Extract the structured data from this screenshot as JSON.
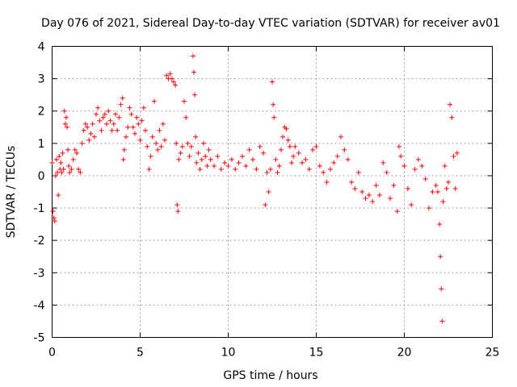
{
  "chart_data": {
    "type": "scatter",
    "title": "Day 076 of 2021, Sidereal Day-to-day VTEC variation (SDTVAR) for receiver av01",
    "xlabel": "GPS time / hours",
    "ylabel": "SDTVAR / TECUs",
    "xlim": [
      0,
      25
    ],
    "ylim": [
      -5,
      4
    ],
    "xticks": [
      0,
      5,
      10,
      15,
      20,
      25
    ],
    "yticks": [
      -5,
      -4,
      -3,
      -2,
      -1,
      0,
      1,
      2,
      3,
      4
    ],
    "grid": true,
    "marker": "+",
    "series": [
      {
        "name": "SDTVAR",
        "color": "#ff0000",
        "points": [
          [
            0.0,
            0.4
          ],
          [
            0.05,
            -1.1
          ],
          [
            0.1,
            -1.3
          ],
          [
            0.15,
            -1.4
          ],
          [
            0.2,
            0.0
          ],
          [
            0.25,
            0.5
          ],
          [
            0.3,
            0.1
          ],
          [
            0.35,
            -0.6
          ],
          [
            0.4,
            0.6
          ],
          [
            0.45,
            0.2
          ],
          [
            0.5,
            0.4
          ],
          [
            0.55,
            0.1
          ],
          [
            0.6,
            0.7
          ],
          [
            0.65,
            0.2
          ],
          [
            0.7,
            2.0
          ],
          [
            0.75,
            1.6
          ],
          [
            0.8,
            1.8
          ],
          [
            0.85,
            1.5
          ],
          [
            0.9,
            0.8
          ],
          [
            0.95,
            0.3
          ],
          [
            1.0,
            0.1
          ],
          [
            1.1,
            0.2
          ],
          [
            1.2,
            0.5
          ],
          [
            1.3,
            0.8
          ],
          [
            1.4,
            0.7
          ],
          [
            1.5,
            0.2
          ],
          [
            1.6,
            0.1
          ],
          [
            1.7,
            1.0
          ],
          [
            1.8,
            1.4
          ],
          [
            1.9,
            1.6
          ],
          [
            2.0,
            1.5
          ],
          [
            2.1,
            1.1
          ],
          [
            2.2,
            1.3
          ],
          [
            2.3,
            1.6
          ],
          [
            2.4,
            1.2
          ],
          [
            2.5,
            1.9
          ],
          [
            2.6,
            2.1
          ],
          [
            2.7,
            1.7
          ],
          [
            2.8,
            1.4
          ],
          [
            2.9,
            1.8
          ],
          [
            3.0,
            1.9
          ],
          [
            3.1,
            1.6
          ],
          [
            3.2,
            2.0
          ],
          [
            3.3,
            1.7
          ],
          [
            3.4,
            1.4
          ],
          [
            3.5,
            1.6
          ],
          [
            3.6,
            1.9
          ],
          [
            3.7,
            1.4
          ],
          [
            3.8,
            1.8
          ],
          [
            3.9,
            2.2
          ],
          [
            4.0,
            2.4
          ],
          [
            4.05,
            0.5
          ],
          [
            4.1,
            0.8
          ],
          [
            4.2,
            1.2
          ],
          [
            4.3,
            1.5
          ],
          [
            4.4,
            2.1
          ],
          [
            4.5,
            1.9
          ],
          [
            4.6,
            1.5
          ],
          [
            4.7,
            1.3
          ],
          [
            4.8,
            1.8
          ],
          [
            4.9,
            1.6
          ],
          [
            5.0,
            1.1
          ],
          [
            5.1,
            1.7
          ],
          [
            5.2,
            2.1
          ],
          [
            5.3,
            1.4
          ],
          [
            5.4,
            0.9
          ],
          [
            5.5,
            0.2
          ],
          [
            5.6,
            0.6
          ],
          [
            5.7,
            1.2
          ],
          [
            5.8,
            2.3
          ],
          [
            5.9,
            1.0
          ],
          [
            6.0,
            0.8
          ],
          [
            6.1,
            1.4
          ],
          [
            6.2,
            0.9
          ],
          [
            6.3,
            1.6
          ],
          [
            6.4,
            1.1
          ],
          [
            6.5,
            3.1
          ],
          [
            6.6,
            3.0
          ],
          [
            6.7,
            3.15
          ],
          [
            6.8,
            3.0
          ],
          [
            6.9,
            2.9
          ],
          [
            7.0,
            2.8
          ],
          [
            7.05,
            1.0
          ],
          [
            7.1,
            -0.9
          ],
          [
            7.15,
            -1.1
          ],
          [
            7.2,
            0.5
          ],
          [
            7.3,
            0.7
          ],
          [
            7.4,
            0.9
          ],
          [
            7.5,
            2.3
          ],
          [
            7.6,
            1.8
          ],
          [
            7.7,
            1.0
          ],
          [
            7.8,
            0.6
          ],
          [
            7.9,
            0.9
          ],
          [
            8.0,
            3.7
          ],
          [
            8.05,
            3.2
          ],
          [
            8.1,
            2.5
          ],
          [
            8.15,
            1.2
          ],
          [
            8.2,
            0.4
          ],
          [
            8.3,
            0.7
          ],
          [
            8.4,
            0.2
          ],
          [
            8.5,
            0.5
          ],
          [
            8.6,
            1.0
          ],
          [
            8.7,
            0.6
          ],
          [
            8.8,
            0.3
          ],
          [
            8.9,
            0.8
          ],
          [
            9.0,
            0.5
          ],
          [
            9.2,
            0.3
          ],
          [
            9.4,
            0.6
          ],
          [
            9.6,
            0.2
          ],
          [
            9.8,
            0.4
          ],
          [
            10.0,
            0.3
          ],
          [
            10.2,
            0.5
          ],
          [
            10.4,
            0.2
          ],
          [
            10.6,
            0.4
          ],
          [
            10.8,
            0.6
          ],
          [
            11.0,
            0.3
          ],
          [
            11.2,
            0.8
          ],
          [
            11.4,
            0.5
          ],
          [
            11.6,
            0.2
          ],
          [
            11.8,
            0.9
          ],
          [
            12.0,
            0.7
          ],
          [
            12.1,
            -0.9
          ],
          [
            12.2,
            0.1
          ],
          [
            12.3,
            -0.5
          ],
          [
            12.4,
            0.2
          ],
          [
            12.5,
            2.9
          ],
          [
            12.55,
            2.2
          ],
          [
            12.6,
            1.8
          ],
          [
            12.7,
            0.5
          ],
          [
            12.8,
            0.1
          ],
          [
            12.9,
            0.3
          ],
          [
            13.0,
            0.8
          ],
          [
            13.1,
            1.2
          ],
          [
            13.2,
            1.5
          ],
          [
            13.3,
            1.45
          ],
          [
            13.4,
            1.1
          ],
          [
            13.5,
            0.9
          ],
          [
            13.6,
            0.4
          ],
          [
            13.7,
            0.6
          ],
          [
            13.8,
            0.9
          ],
          [
            14.0,
            0.7
          ],
          [
            14.2,
            0.4
          ],
          [
            14.4,
            0.5
          ],
          [
            14.6,
            0.2
          ],
          [
            14.8,
            0.8
          ],
          [
            15.0,
            0.9
          ],
          [
            15.2,
            0.3
          ],
          [
            15.4,
            0.1
          ],
          [
            15.6,
            -0.2
          ],
          [
            15.8,
            0.2
          ],
          [
            16.0,
            0.4
          ],
          [
            16.2,
            0.6
          ],
          [
            16.4,
            1.2
          ],
          [
            16.6,
            0.8
          ],
          [
            16.8,
            0.5
          ],
          [
            17.0,
            -0.2
          ],
          [
            17.2,
            -0.4
          ],
          [
            17.4,
            0.1
          ],
          [
            17.6,
            -0.5
          ],
          [
            17.8,
            -0.7
          ],
          [
            18.0,
            -0.6
          ],
          [
            18.2,
            -0.8
          ],
          [
            18.4,
            -0.3
          ],
          [
            18.6,
            -0.6
          ],
          [
            18.8,
            0.4
          ],
          [
            19.0,
            0.1
          ],
          [
            19.2,
            -0.7
          ],
          [
            19.4,
            -0.3
          ],
          [
            19.6,
            -1.1
          ],
          [
            19.7,
            0.9
          ],
          [
            19.8,
            0.6
          ],
          [
            20.0,
            0.3
          ],
          [
            20.2,
            -0.4
          ],
          [
            20.4,
            -0.9
          ],
          [
            20.6,
            0.2
          ],
          [
            20.8,
            0.5
          ],
          [
            21.0,
            0.3
          ],
          [
            21.2,
            -0.1
          ],
          [
            21.4,
            -1.0
          ],
          [
            21.6,
            -0.5
          ],
          [
            21.8,
            -0.3
          ],
          [
            21.9,
            -0.5
          ],
          [
            22.0,
            -1.5
          ],
          [
            22.05,
            -2.5
          ],
          [
            22.1,
            -3.5
          ],
          [
            22.15,
            -4.5
          ],
          [
            22.2,
            -0.8
          ],
          [
            22.3,
            0.3
          ],
          [
            22.4,
            -0.4
          ],
          [
            22.5,
            -0.2
          ],
          [
            22.6,
            2.2
          ],
          [
            22.7,
            1.8
          ],
          [
            22.8,
            0.6
          ],
          [
            22.9,
            -0.4
          ],
          [
            23.0,
            0.7
          ]
        ]
      }
    ]
  }
}
